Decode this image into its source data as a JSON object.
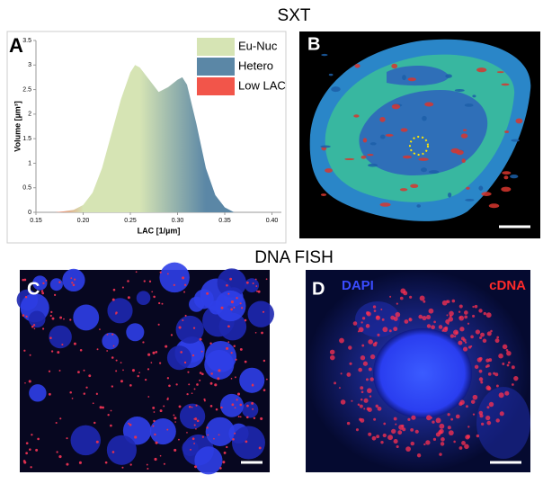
{
  "header": {
    "title": "SXT",
    "section_title": "DNA FISH"
  },
  "chart_data": {
    "type": "area",
    "panel_label": "A",
    "x_label": "LAC [1/µm]",
    "y_label": "Volume [µm³]",
    "x": [
      0.17,
      0.18,
      0.19,
      0.2,
      0.21,
      0.22,
      0.23,
      0.24,
      0.25,
      0.255,
      0.26,
      0.27,
      0.28,
      0.29,
      0.3,
      0.305,
      0.31,
      0.32,
      0.33,
      0.34,
      0.35,
      0.36
    ],
    "values": [
      0,
      0.02,
      0.05,
      0.15,
      0.4,
      0.9,
      1.6,
      2.3,
      2.85,
      3.0,
      2.95,
      2.7,
      2.45,
      2.55,
      2.7,
      2.75,
      2.6,
      1.8,
      0.9,
      0.35,
      0.1,
      0
    ],
    "xlim": [
      0.15,
      0.41
    ],
    "ylim": [
      0,
      3.5
    ],
    "xticks": [
      0.15,
      {
        "value": 0.2,
        "label": "0.20"
      },
      0.25,
      {
        "value": 0.3,
        "label": "0.30"
      },
      0.35,
      {
        "value": 0.4,
        "label": "0.40"
      }
    ],
    "yticks": [
      0,
      0.5,
      1,
      1.5,
      2,
      2.5,
      3,
      3.5
    ],
    "legend": [
      {
        "name": "Eu-Nuc",
        "color": "#d6e4b4"
      },
      {
        "name": "Hetero",
        "color": "#5b87a6"
      },
      {
        "name": "Low LAC",
        "color": "#f2554a"
      }
    ]
  },
  "panels": [
    {
      "label": "B"
    },
    {
      "label": "C"
    },
    {
      "label": "D",
      "stains": [
        {
          "name": "DAPI",
          "color": "#3a4cff"
        },
        {
          "name": "cDNA",
          "color": "#ff2a2a"
        }
      ]
    }
  ]
}
